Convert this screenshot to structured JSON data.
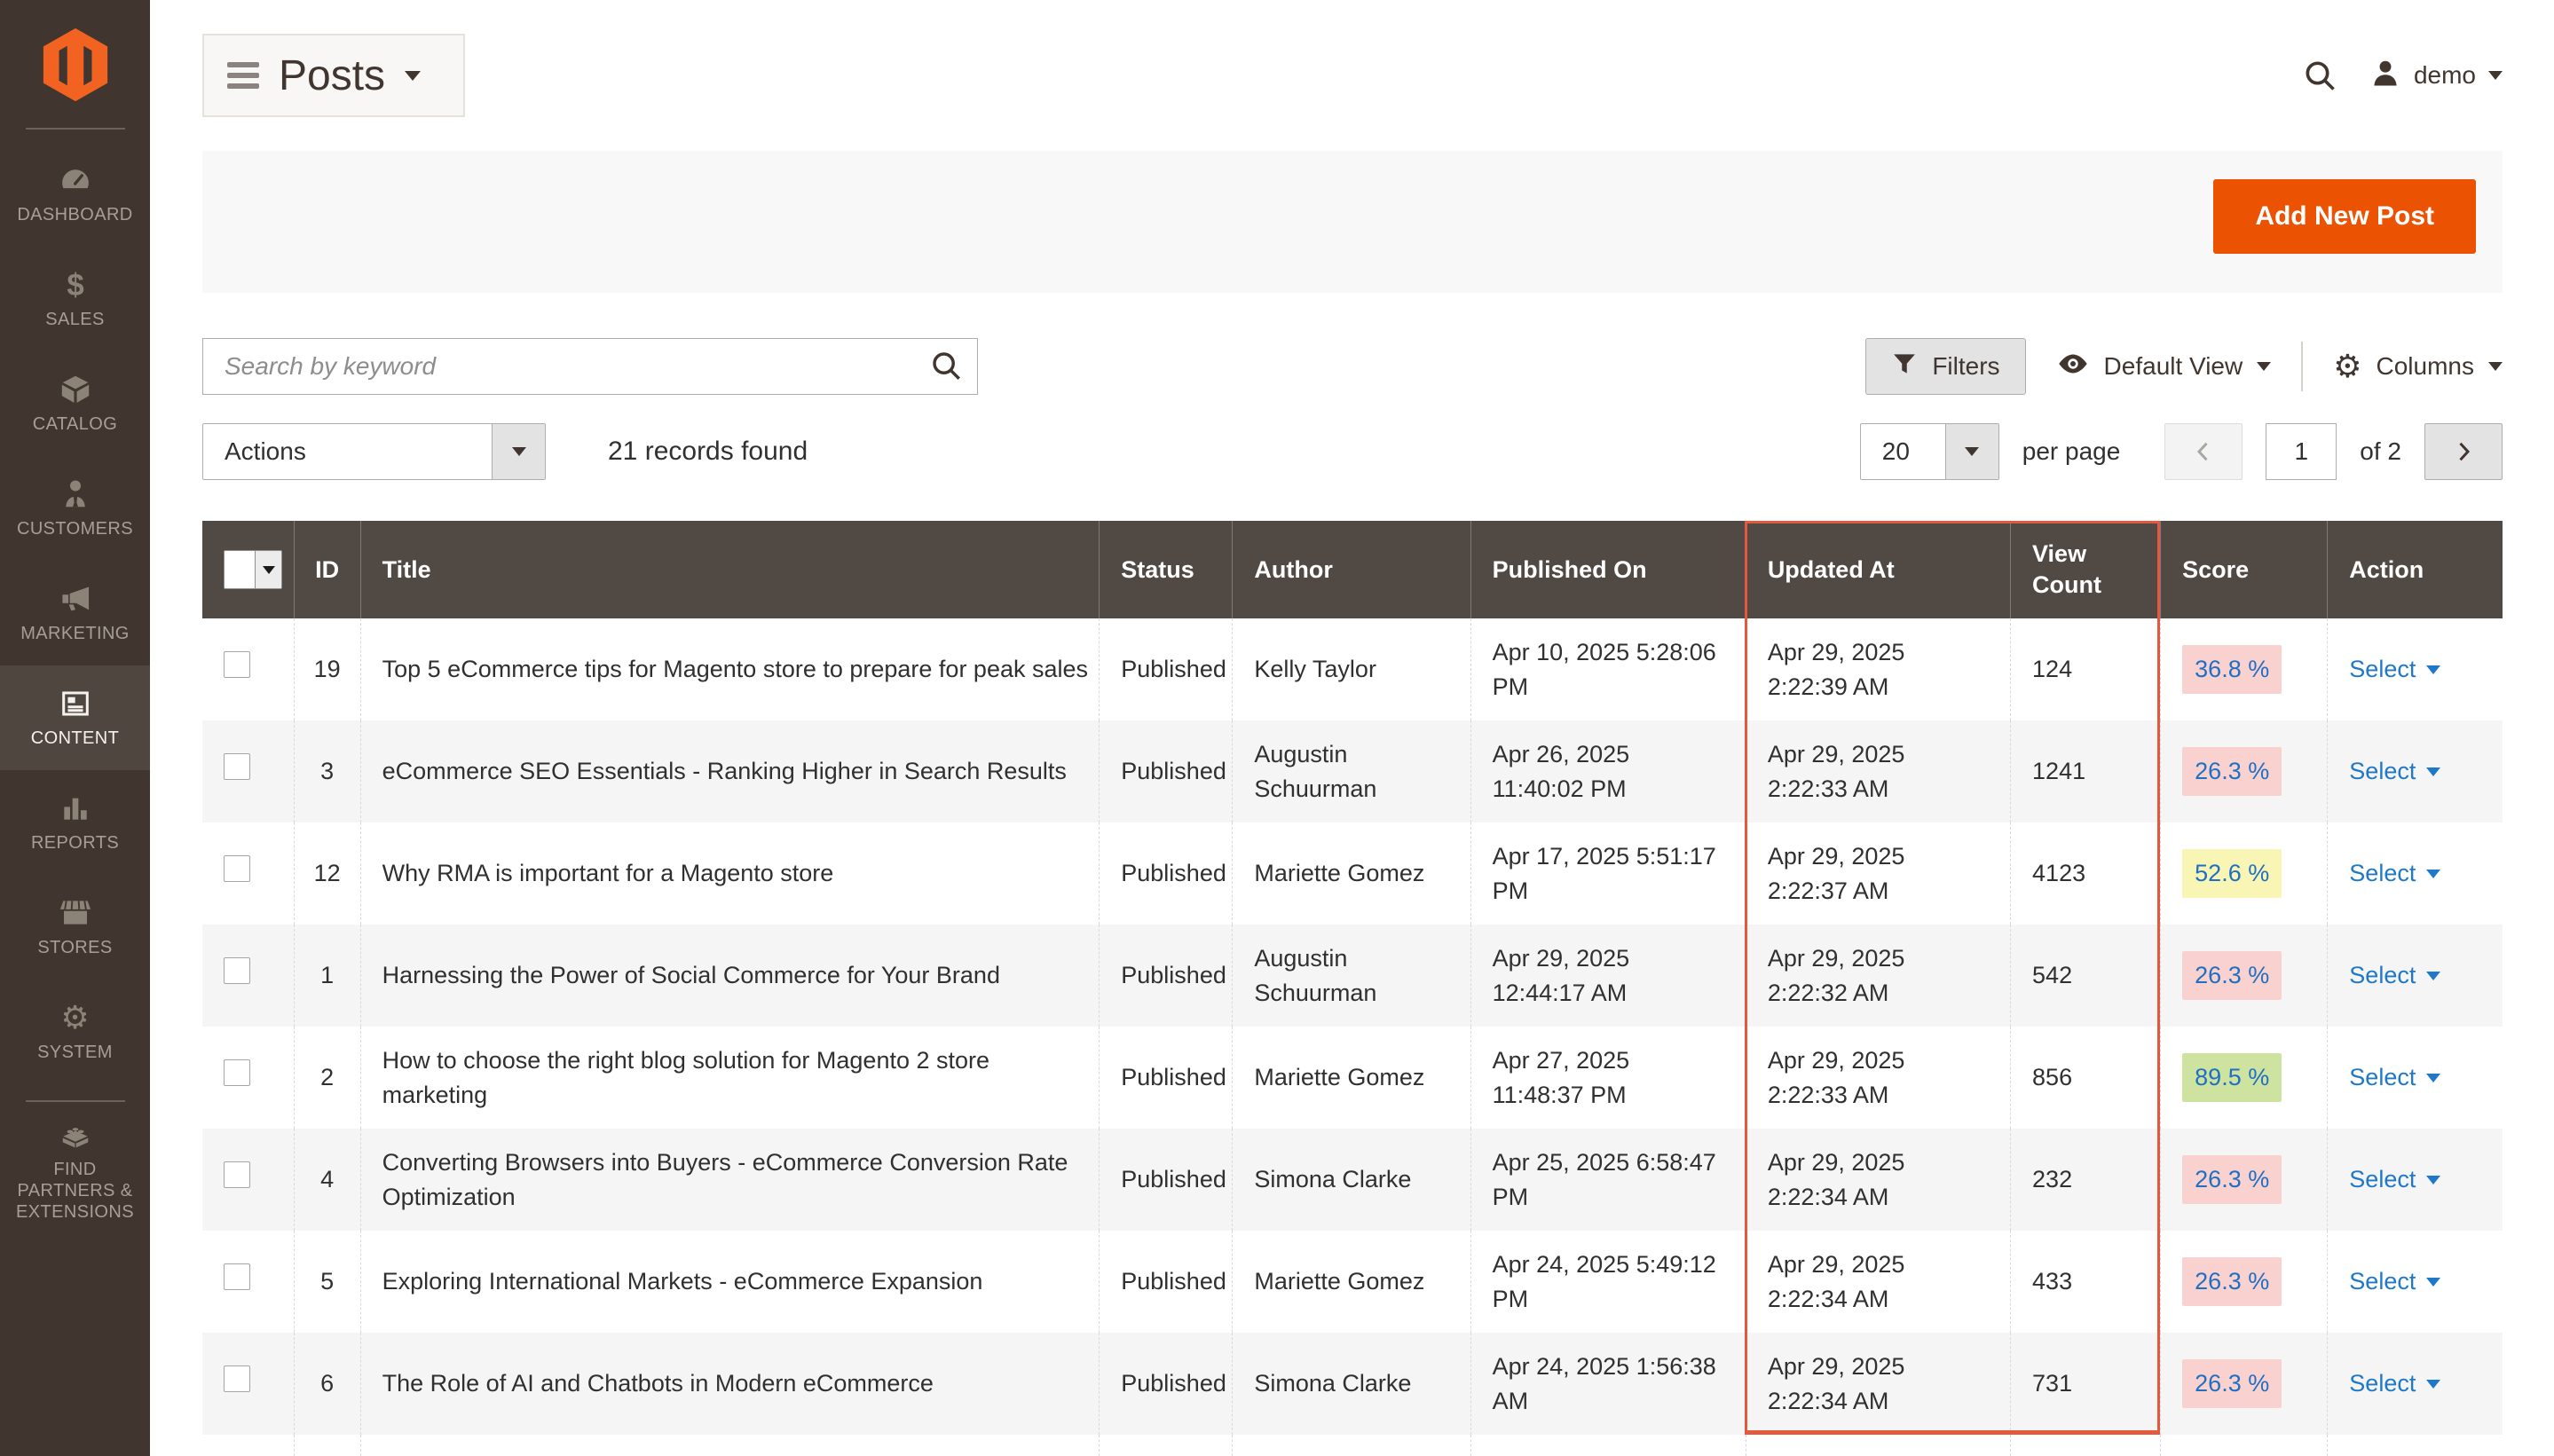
{
  "colors": {
    "accent": "#eb5202",
    "logo_orange": "#f26322",
    "grid_header_bg": "#514943",
    "sidebar_bg": "#41362f",
    "link_blue": "#1f78c8",
    "score_text_blue": "#1f6fc4",
    "badge_bg": {
      "pink": "#f9d2cf",
      "yellow": "#f9f5b5",
      "green": "#cfe3a0"
    }
  },
  "sidebar": {
    "items": [
      {
        "label": "DASHBOARD",
        "icon": "dashboard-icon"
      },
      {
        "label": "SALES",
        "icon": "sales-icon"
      },
      {
        "label": "CATALOG",
        "icon": "catalog-icon"
      },
      {
        "label": "CUSTOMERS",
        "icon": "customers-icon"
      },
      {
        "label": "MARKETING",
        "icon": "marketing-icon"
      },
      {
        "label": "CONTENT",
        "icon": "content-icon",
        "active": true
      },
      {
        "label": "REPORTS",
        "icon": "reports-icon"
      },
      {
        "label": "STORES",
        "icon": "stores-icon"
      },
      {
        "label": "SYSTEM",
        "icon": "system-icon"
      },
      {
        "label": "FIND PARTNERS & EXTENSIONS",
        "icon": "find-partners-icon",
        "divider_before": true
      }
    ]
  },
  "header": {
    "title": "Posts",
    "user": "demo"
  },
  "action_bar": {
    "add_button": "Add New Post"
  },
  "controls": {
    "search_placeholder": "Search by keyword",
    "filters_label": "Filters",
    "view_label": "Default View",
    "columns_label": "Columns"
  },
  "grid_toolbar": {
    "actions_label": "Actions",
    "records_found": "21 records found",
    "per_page_value": "20",
    "per_page_label": "per page",
    "current_page": "1",
    "total_pages_label": "of 2"
  },
  "table": {
    "columns": [
      "ID",
      "Title",
      "Status",
      "Author",
      "Published On",
      "Updated At",
      "View Count",
      "Score",
      "Action"
    ],
    "rows": [
      {
        "id": "19",
        "title": "Top 5 eCommerce tips for Magento store to prepare for peak sales",
        "status": "Published",
        "author": "Kelly Taylor",
        "published_on": "Apr 10, 2025 5:28:06 PM",
        "updated_at": "Apr 29, 2025 2:22:39 AM",
        "view_count": "124",
        "score": "36.8 %",
        "score_color": "pink",
        "action": "Select"
      },
      {
        "id": "3",
        "title": "eCommerce SEO Essentials - Ranking Higher in Search Results",
        "status": "Published",
        "author": "Augustin Schuurman",
        "published_on": "Apr 26, 2025 11:40:02 PM",
        "updated_at": "Apr 29, 2025 2:22:33 AM",
        "view_count": "1241",
        "score": "26.3 %",
        "score_color": "pink",
        "action": "Select"
      },
      {
        "id": "12",
        "title": "Why RMA is important for a Magento store",
        "status": "Published",
        "author": "Mariette Gomez",
        "published_on": "Apr 17, 2025 5:51:17 PM",
        "updated_at": "Apr 29, 2025 2:22:37 AM",
        "view_count": "4123",
        "score": "52.6 %",
        "score_color": "yellow",
        "action": "Select"
      },
      {
        "id": "1",
        "title": "Harnessing the Power of Social Commerce for Your Brand",
        "status": "Published",
        "author": "Augustin Schuurman",
        "published_on": "Apr 29, 2025 12:44:17 AM",
        "updated_at": "Apr 29, 2025 2:22:32 AM",
        "view_count": "542",
        "score": "26.3 %",
        "score_color": "pink",
        "action": "Select"
      },
      {
        "id": "2",
        "title": "How to choose the right blog solution for Magento 2 store marketing",
        "status": "Published",
        "author": "Mariette Gomez",
        "published_on": "Apr 27, 2025 11:48:37 PM",
        "updated_at": "Apr 29, 2025 2:22:33 AM",
        "view_count": "856",
        "score": "89.5 %",
        "score_color": "green",
        "action": "Select"
      },
      {
        "id": "4",
        "title": "Converting Browsers into Buyers - eCommerce Conversion Rate Optimization",
        "status": "Published",
        "author": "Simona Clarke",
        "published_on": "Apr 25, 2025 6:58:47 PM",
        "updated_at": "Apr 29, 2025 2:22:34 AM",
        "view_count": "232",
        "score": "26.3 %",
        "score_color": "pink",
        "action": "Select"
      },
      {
        "id": "5",
        "title": "Exploring International Markets - eCommerce Expansion",
        "status": "Published",
        "author": "Mariette Gomez",
        "published_on": "Apr 24, 2025 5:49:12 PM",
        "updated_at": "Apr 29, 2025 2:22:34 AM",
        "view_count": "433",
        "score": "26.3 %",
        "score_color": "pink",
        "action": "Select"
      },
      {
        "id": "6",
        "title": "The Role of AI and Chatbots in Modern eCommerce",
        "status": "Published",
        "author": "Simona Clarke",
        "published_on": "Apr 24, 2025 1:56:38 AM",
        "updated_at": "Apr 29, 2025 2:22:34 AM",
        "view_count": "731",
        "score": "26.3 %",
        "score_color": "pink",
        "action": "Select"
      }
    ]
  }
}
